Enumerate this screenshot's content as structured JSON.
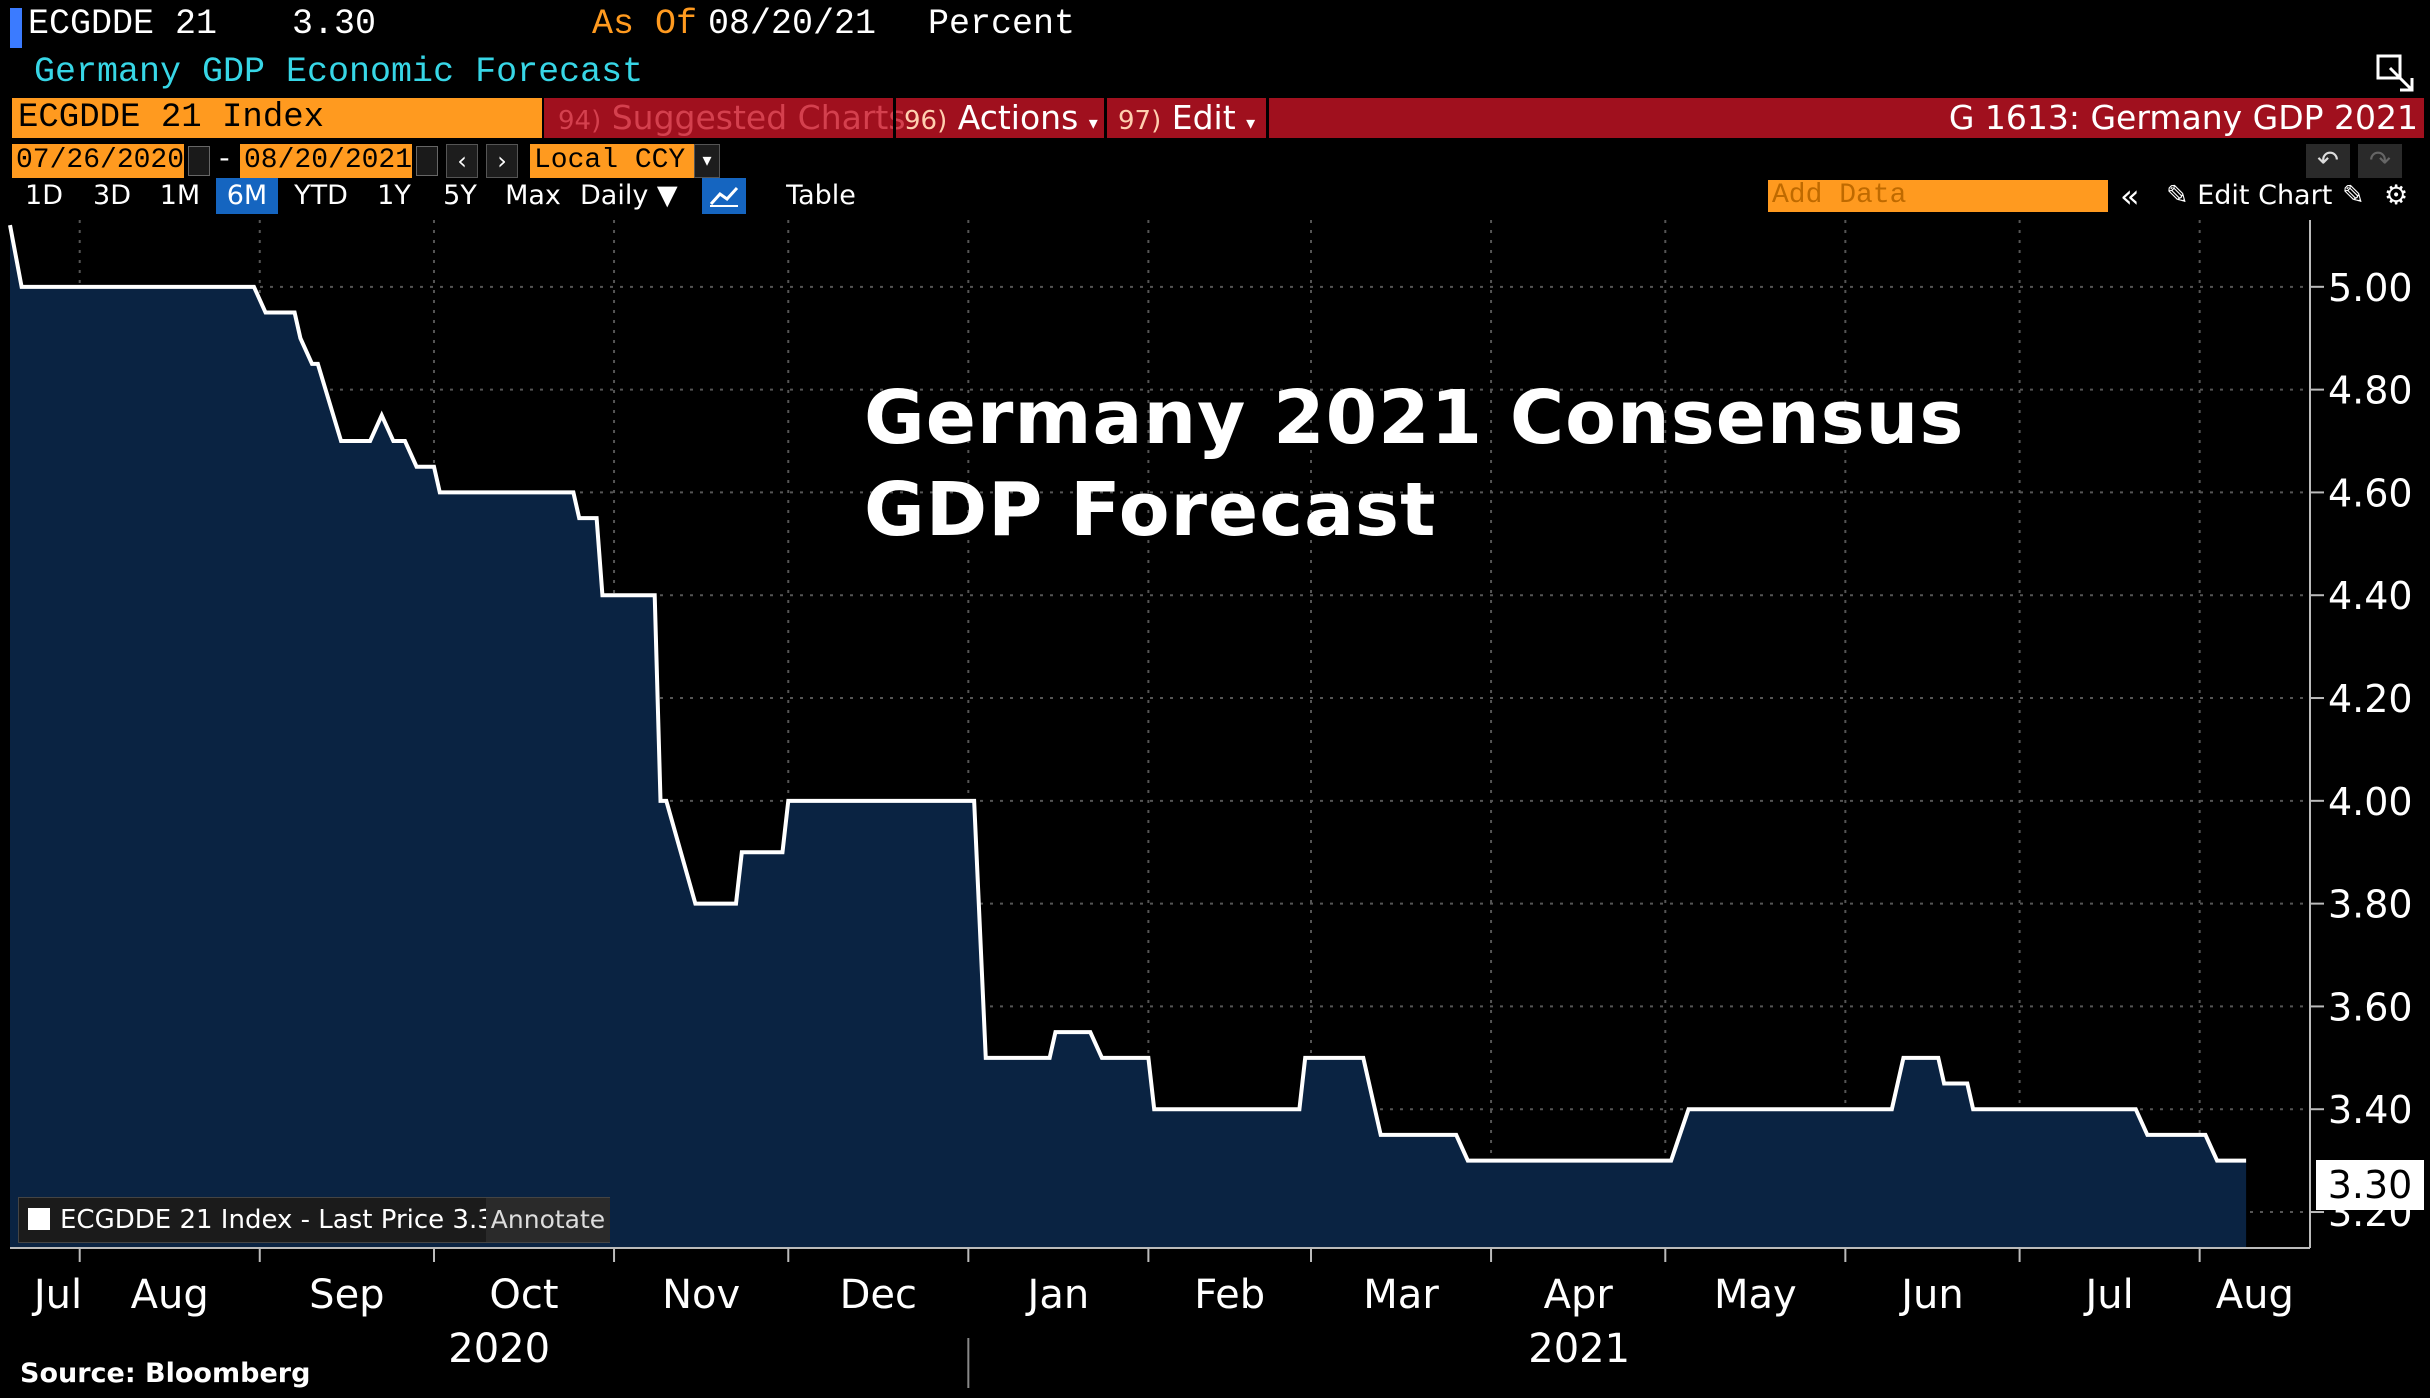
{
  "header": {
    "ticker": "ECGDDE 21",
    "value": "3.30",
    "as_of_label": "As Of",
    "as_of_date": "08/20/21",
    "units": "Percent",
    "description": "Germany GDP Economic Forecast"
  },
  "security_field": "ECGDDE 21 Index",
  "menu": {
    "suggested": {
      "num": "94)",
      "label": "Suggested Charts"
    },
    "actions": {
      "num": "96)",
      "label": "Actions"
    },
    "edit": {
      "num": "97)",
      "label": "Edit"
    },
    "title": "G 1613: Germany GDP 2021"
  },
  "date_range": {
    "start": "07/26/2020",
    "sep": "-",
    "end": "08/20/2021",
    "currency": "Local CCY"
  },
  "toolbar": {
    "periods": [
      "1D",
      "3D",
      "1M",
      "6M",
      "YTD",
      "1Y",
      "5Y",
      "Max"
    ],
    "active_period": "6M",
    "frequency": "Daily",
    "table_label": "Table",
    "add_data_placeholder": "Add Data",
    "edit_chart_label": "Edit Chart"
  },
  "legend": {
    "text": "ECGDDE 21 Index - Last Price 3.30",
    "annotate": "Annotate"
  },
  "last_price_tag": "3.30",
  "source": "Source: Bloomberg",
  "colors": {
    "accent": "#ff9a1f",
    "menu_bar": "#a0101e",
    "area_fill": "#0a2342",
    "line": "#ffffff",
    "cyan": "#37d6e6"
  },
  "chart_data": {
    "type": "area",
    "title": "Germany 2021 Consensus GDP Forecast",
    "title_lines": [
      "Germany 2021 Consensus",
      "GDP Forecast"
    ],
    "xlabel": "",
    "ylabel": "Percent",
    "ylim": [
      3.13,
      5.13
    ],
    "yticks": [
      3.2,
      3.4,
      3.6,
      3.8,
      4.0,
      4.2,
      4.4,
      4.6,
      4.8,
      5.0
    ],
    "x_month_labels": [
      "Jul",
      "Aug",
      "Sep",
      "Oct",
      "Nov",
      "Dec",
      "Jan",
      "Feb",
      "Mar",
      "Apr",
      "May",
      "Jun",
      "Jul",
      "Aug"
    ],
    "x_year_labels": [
      "2020",
      "2021"
    ],
    "x_start": "2020-07-20",
    "x_end": "2021-08-20",
    "series": [
      {
        "name": "ECGDDE 21 Index - Last Price",
        "x": [
          "2020-07-20",
          "2020-07-22",
          "2020-08-31",
          "2020-09-02",
          "2020-09-07",
          "2020-09-08",
          "2020-09-10",
          "2020-09-11",
          "2020-09-15",
          "2020-09-20",
          "2020-09-22",
          "2020-09-24",
          "2020-09-26",
          "2020-09-28",
          "2020-10-01",
          "2020-10-02",
          "2020-10-05",
          "2020-10-06",
          "2020-10-25",
          "2020-10-26",
          "2020-10-29",
          "2020-10-30",
          "2020-11-08",
          "2020-11-09",
          "2020-11-10",
          "2020-11-15",
          "2020-11-22",
          "2020-11-23",
          "2020-11-30",
          "2020-12-01",
          "2021-01-02",
          "2021-01-04",
          "2021-01-15",
          "2021-01-16",
          "2021-01-22",
          "2021-01-24",
          "2021-02-01",
          "2021-02-02",
          "2021-02-27",
          "2021-02-28",
          "2021-03-10",
          "2021-03-13",
          "2021-03-26",
          "2021-03-28",
          "2021-05-02",
          "2021-05-05",
          "2021-06-09",
          "2021-06-11",
          "2021-06-17",
          "2021-06-18",
          "2021-06-22",
          "2021-06-23",
          "2021-07-21",
          "2021-07-23",
          "2021-08-02",
          "2021-08-04",
          "2021-08-09"
        ],
        "values": [
          5.12,
          5.0,
          5.0,
          4.95,
          4.95,
          4.9,
          4.85,
          4.85,
          4.7,
          4.7,
          4.75,
          4.7,
          4.7,
          4.65,
          4.65,
          4.6,
          4.6,
          4.6,
          4.6,
          4.55,
          4.55,
          4.4,
          4.4,
          4.0,
          4.0,
          3.8,
          3.8,
          3.9,
          3.9,
          4.0,
          4.0,
          3.5,
          3.5,
          3.55,
          3.55,
          3.5,
          3.5,
          3.4,
          3.4,
          3.5,
          3.5,
          3.35,
          3.35,
          3.3,
          3.3,
          3.4,
          3.4,
          3.5,
          3.5,
          3.45,
          3.45,
          3.4,
          3.4,
          3.35,
          3.35,
          3.3,
          3.3
        ]
      }
    ]
  }
}
